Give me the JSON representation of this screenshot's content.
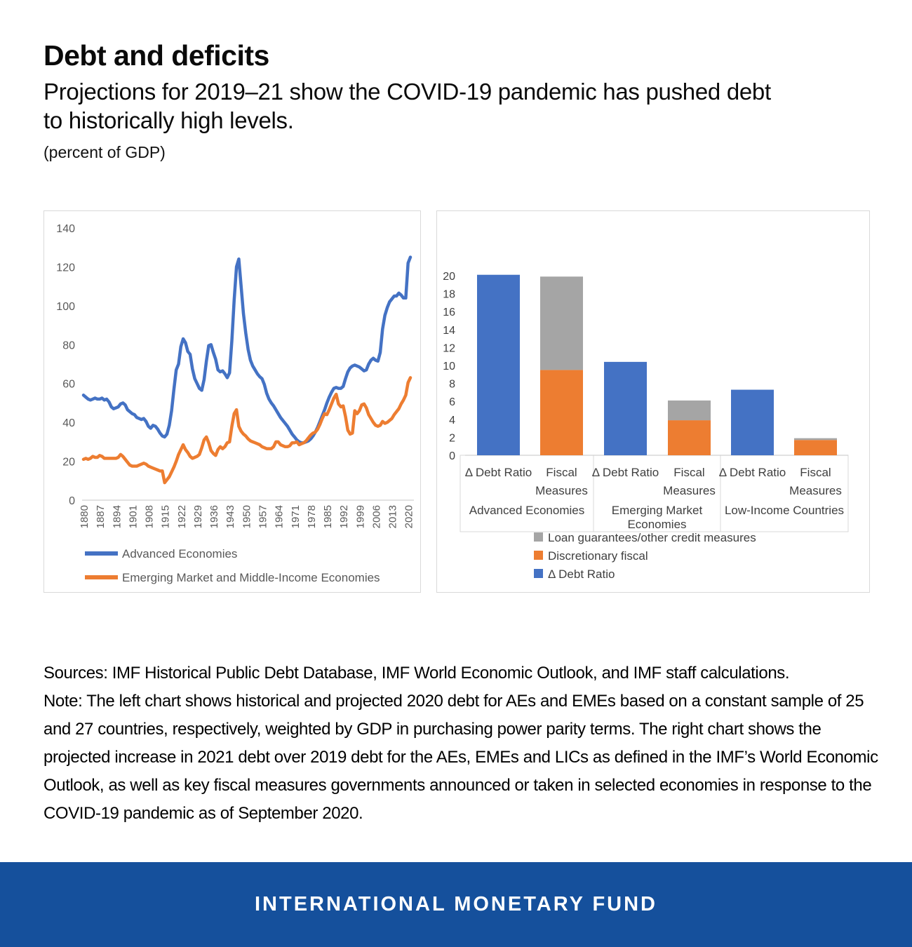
{
  "header": {
    "title": "Debt and deficits",
    "subtitle": "Projections for 2019–21 show the COVID-19 pandemic has pushed debt to historically high levels.",
    "unit_note": "(percent of GDP)"
  },
  "notes": {
    "sources": "Sources: IMF Historical Public Debt Database, IMF World Economic Outlook, and IMF staff calculations.",
    "note": "Note: The left chart shows historical and projected 2020 debt for AEs and EMEs based on a constant sample of 25 and 27 countries, respectively, weighted by GDP in purchasing power parity terms. The right chart shows the projected increase in 2021 debt over 2019 debt for the AEs, EMEs and LICs as defined in the IMF’s World Economic Outlook, as well as key fiscal measures governments announced or taken in selected economies in response to the COVID-19 pandemic as of September 2020."
  },
  "footer": {
    "banner_text": "INTERNATIONAL MONETARY FUND",
    "banner_color": "#15509c"
  },
  "colors": {
    "blue": "#4472c4",
    "orange": "#ed7d31",
    "gray": "#a5a5a5",
    "axis_line": "#c6c6c6",
    "panel_border": "#d9d9d9",
    "tick_text_left": "#595959",
    "tick_text_right": "#404040"
  },
  "chart_data": [
    {
      "type": "line",
      "title": "",
      "x_start": 1880,
      "x_end": 2021,
      "x_tick_labels": [
        "1880",
        "1887",
        "1894",
        "1901",
        "1908",
        "1915",
        "1922",
        "1929",
        "1936",
        "1943",
        "1950",
        "1957",
        "1964",
        "1971",
        "1978",
        "1985",
        "1992",
        "1999",
        "2006",
        "2013",
        "2020"
      ],
      "ylim": [
        0,
        140
      ],
      "y_ticks": [
        0,
        20,
        40,
        60,
        80,
        100,
        120,
        140
      ],
      "grid": false,
      "legend_position": "bottom",
      "series": [
        {
          "name": "Advanced Economies",
          "color": "#4472c4",
          "values": [
            54,
            53,
            52,
            51.5,
            52,
            52.5,
            52,
            52,
            52.5,
            51.5,
            52,
            50.5,
            48,
            47,
            47.5,
            48,
            49.5,
            50,
            49,
            46.5,
            45.5,
            44.5,
            44,
            42.5,
            42,
            41.5,
            42,
            40.5,
            38,
            37,
            38.5,
            38,
            36.5,
            34.5,
            33,
            32.5,
            34,
            38.5,
            46,
            57,
            67,
            70,
            79,
            83,
            81,
            76.5,
            75,
            67.5,
            62.5,
            60,
            57.5,
            56.5,
            62,
            71.5,
            79.5,
            80,
            76,
            72.5,
            67,
            66,
            66.5,
            65,
            63,
            65.5,
            82,
            103,
            120,
            124,
            110,
            96,
            86,
            77.5,
            72,
            69,
            67,
            65,
            63.5,
            62.5,
            59.5,
            55,
            52,
            50,
            48.5,
            46.5,
            44.5,
            42.5,
            41,
            39.5,
            38,
            36,
            34,
            32.5,
            31,
            30,
            29.5,
            29.5,
            30,
            30.5,
            31.5,
            33,
            35,
            37.5,
            40.5,
            43.5,
            46.5,
            50,
            53,
            55.5,
            57.5,
            58,
            57.5,
            57.5,
            58.5,
            62.5,
            66,
            68,
            69,
            69.5,
            69,
            68.5,
            67.5,
            66.5,
            67,
            70,
            72,
            73,
            72,
            71.5,
            76,
            88,
            95,
            99,
            102,
            103.5,
            105,
            105,
            106.5,
            105.5,
            104,
            104,
            122,
            125
          ]
        },
        {
          "name": "Emerging Market and Middle-Income Economies",
          "color": "#ed7d31",
          "values": [
            21,
            21.5,
            21,
            21.5,
            22.5,
            22,
            22,
            23,
            22.5,
            21.5,
            21.5,
            21.5,
            21.5,
            21.5,
            21.5,
            22,
            23.5,
            22.5,
            21,
            19.5,
            18,
            17.5,
            17.5,
            17.5,
            18,
            18.5,
            19,
            18.5,
            17.5,
            17,
            16.5,
            16,
            15.5,
            15,
            15,
            9,
            10.5,
            12,
            14.5,
            17,
            20,
            23.5,
            26,
            28.5,
            26,
            24.5,
            22.5,
            21.5,
            22,
            22.5,
            23.5,
            27,
            31,
            32.5,
            29.5,
            25.5,
            24,
            23,
            26,
            27.5,
            26.5,
            27.5,
            29.5,
            30,
            38,
            44.5,
            46.5,
            38,
            35.5,
            34,
            33,
            31.5,
            30.5,
            30,
            29.5,
            29,
            28.5,
            27.5,
            27,
            26.5,
            26.5,
            26.5,
            27.5,
            30,
            30,
            28.5,
            28,
            27.5,
            27.5,
            28,
            29.5,
            29.5,
            30,
            28.5,
            29,
            29.5,
            30.5,
            32,
            33.5,
            34.5,
            35,
            36.5,
            39,
            42,
            44.5,
            44,
            46.5,
            49.5,
            52.5,
            54.5,
            49.5,
            48,
            48.5,
            43,
            36,
            34,
            34.5,
            46,
            44.5,
            46,
            49,
            49.5,
            47.5,
            44,
            42,
            40,
            38.5,
            38,
            38.5,
            40.5,
            39.5,
            40,
            41,
            42,
            44,
            45.5,
            47,
            49.5,
            51.5,
            54,
            60.5,
            63
          ]
        }
      ]
    },
    {
      "type": "bar-stacked",
      "title": "",
      "ylim": [
        0,
        20
      ],
      "y_ticks": [
        0,
        2,
        4,
        6,
        8,
        10,
        12,
        14,
        16,
        18,
        20
      ],
      "grid": false,
      "legend_position": "bottom",
      "bar_labels": {
        "debt": "Δ Debt Ratio",
        "fiscal": [
          "Fiscal",
          "Measures"
        ]
      },
      "groups": [
        {
          "label": [
            "Advanced Economies"
          ],
          "debt_ratio": 20.1,
          "fiscal_discretionary": 9.5,
          "fiscal_guarantees": 10.4
        },
        {
          "label": [
            "Emerging Market",
            "Economies"
          ],
          "debt_ratio": 10.4,
          "fiscal_discretionary": 3.9,
          "fiscal_guarantees": 2.2
        },
        {
          "label": [
            "Low-Income Countries"
          ],
          "debt_ratio": 7.3,
          "fiscal_discretionary": 1.7,
          "fiscal_guarantees": 0.2
        }
      ],
      "legend": [
        {
          "label": "Loan guarantees/other credit measures",
          "color": "#a5a5a5"
        },
        {
          "label": "Discretionary fiscal",
          "color": "#ed7d31"
        },
        {
          "label": "Δ Debt Ratio",
          "color": "#4472c4"
        }
      ]
    }
  ]
}
